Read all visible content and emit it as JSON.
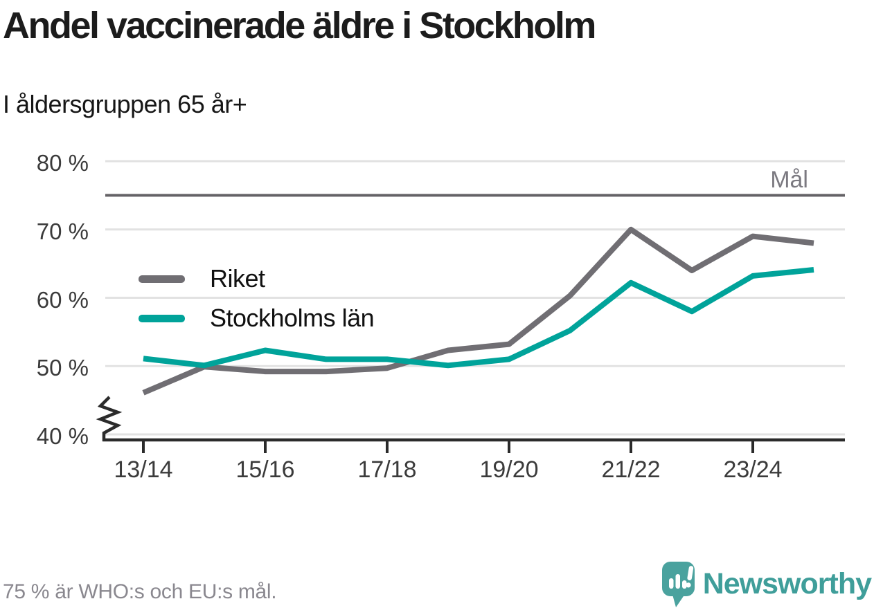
{
  "header": {
    "title": "Andel vaccinerade äldre i Stockholm",
    "subtitle": "I åldersgruppen 65 år+"
  },
  "chart_data": {
    "type": "line",
    "x": [
      "13/14",
      "14/15",
      "15/16",
      "16/17",
      "17/18",
      "18/19",
      "19/20",
      "20/21",
      "21/22",
      "22/23",
      "23/24",
      "24/25"
    ],
    "x_tick_labels": [
      "13/14",
      "15/16",
      "17/18",
      "19/20",
      "21/22",
      "23/24"
    ],
    "x_tick_every": 2,
    "series": [
      {
        "name": "Riket",
        "color": "#706e73",
        "values": [
          46.1,
          49.9,
          49.2,
          49.2,
          49.7,
          52.3,
          53.2,
          60.3,
          70.0,
          64.0,
          69.0,
          68.0
        ]
      },
      {
        "name": "Stockholms län",
        "color": "#00a39a",
        "values": [
          51.1,
          50.1,
          52.3,
          51.0,
          51.0,
          50.1,
          51.0,
          55.2,
          62.2,
          58.0,
          63.2,
          64.1
        ]
      }
    ],
    "y_ticks": [
      80,
      70,
      60,
      50,
      40
    ],
    "y_tick_labels": [
      "80 %",
      "70 %",
      "60 %",
      "50 %",
      "40 %"
    ],
    "ylim": [
      40,
      80
    ],
    "axis_break_below": 40,
    "goal_line": {
      "value": 75,
      "label": "Mål",
      "color": "#646266"
    },
    "grid": "horizontal",
    "grid_color": "#e2e2e2",
    "axis_color": "#2b2b2b",
    "legend_position": "inside-left"
  },
  "footer": {
    "note": "75 % är WHO:s och EU:s mål.",
    "brand": "Newsworthy",
    "brand_color": "#3f9e9a",
    "brand_icon": "newsworthy-speech-bubble-chart-icon"
  }
}
